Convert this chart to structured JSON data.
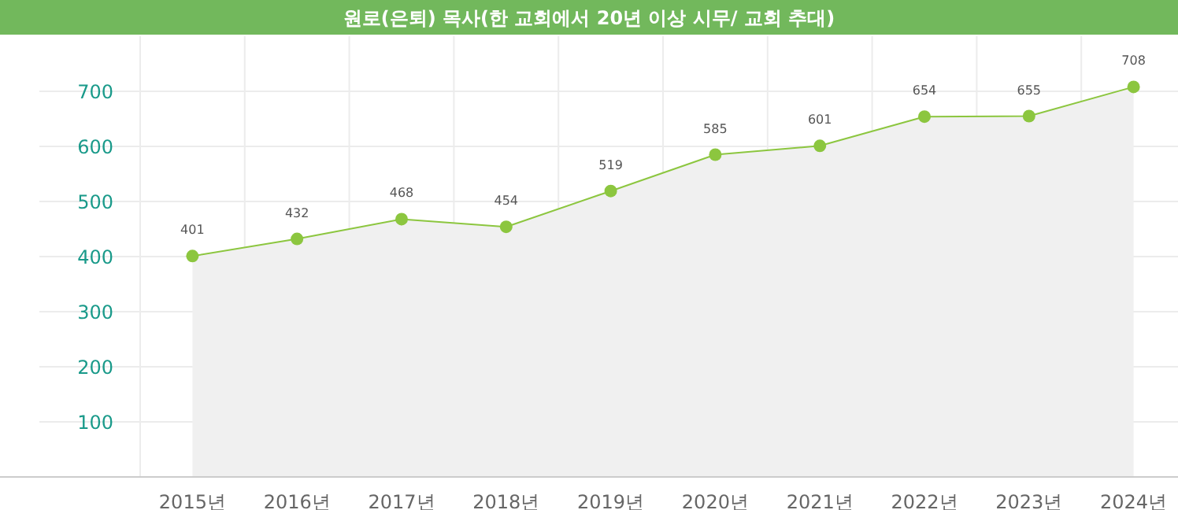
{
  "chart_data": {
    "type": "area",
    "title": "원로(은퇴) 목사(한 교회에서 20년 이상 시무/ 교회 추대)",
    "categories": [
      "2015년",
      "2016년",
      "2017년",
      "2018년",
      "2019년",
      "2020년",
      "2021년",
      "2022년",
      "2023년",
      "2024년"
    ],
    "series": [
      {
        "color": "#8cc63f",
        "values": [
          401,
          432,
          468,
          454,
          519,
          585,
          601,
          654,
          655,
          708
        ]
      }
    ],
    "ylim": [
      0,
      800
    ],
    "yticks": [
      100,
      200,
      300,
      400,
      500,
      600,
      700
    ],
    "grid": true,
    "marker": "circle",
    "data_labels": true
  }
}
